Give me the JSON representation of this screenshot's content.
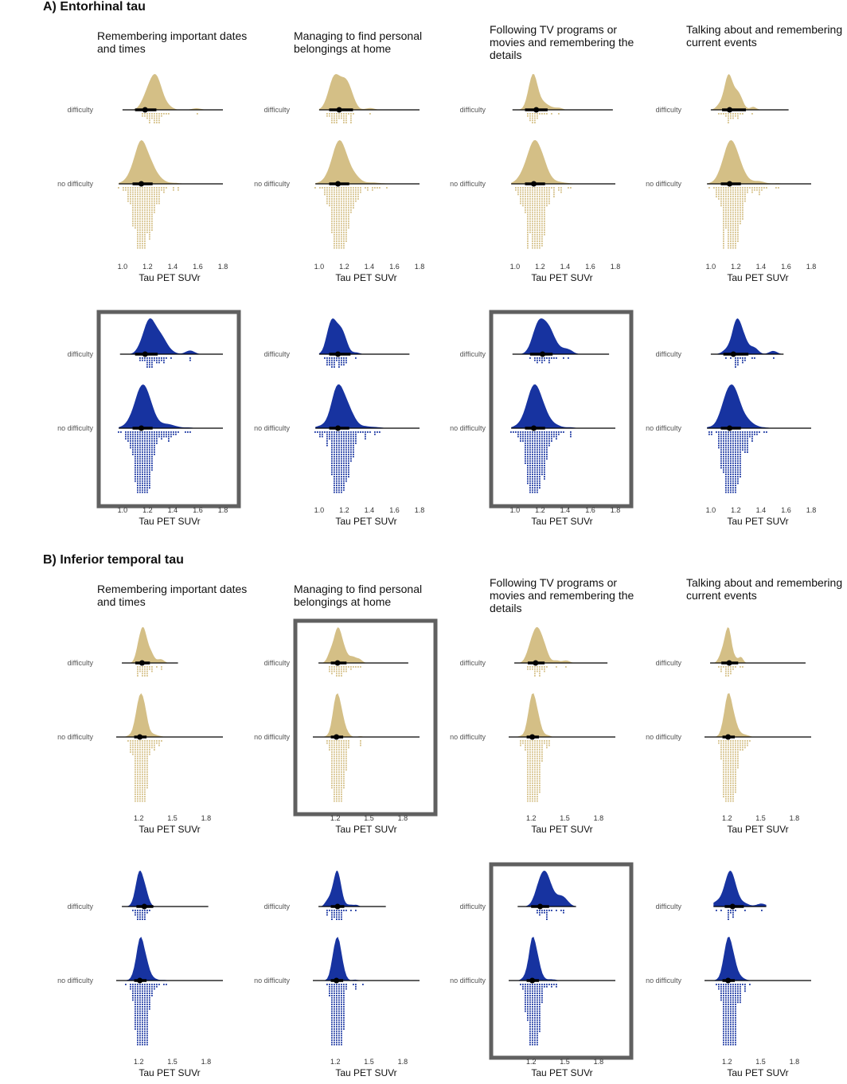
{
  "sections": [
    {
      "label": "A) Entorhinal tau",
      "columns": [
        {
          "title": "Remembering important dates and times"
        },
        {
          "title": "Managing to find personal belongings at home"
        },
        {
          "title": "Following TV programs or movies and remembering the details"
        },
        {
          "title": "Talking about and remembering current events"
        }
      ]
    },
    {
      "label": "B) Inferior temporal tau",
      "columns": [
        {
          "title": "Remembering important dates and times"
        },
        {
          "title": "Managing to find personal belongings at home"
        },
        {
          "title": "Following TV programs or movies and remembering the details"
        },
        {
          "title": "Talking about and remembering current events"
        }
      ]
    }
  ],
  "colors": {
    "tan": "#d4bf86",
    "blue": "#1733a0",
    "frame": "#606060",
    "summary": "#000000"
  },
  "chart_data": [
    {
      "id": "entorhinal",
      "type": "raincloud",
      "xlabel": "Tau PET SUVr",
      "xlim": [
        0.95,
        1.8
      ],
      "xticks": [
        1.0,
        1.2,
        1.4,
        1.6,
        1.8
      ],
      "categories": [
        "difficulty",
        "no difficulty"
      ],
      "rows": [
        {
          "series_color": "tan",
          "panels": [
            {
              "highlighted": false,
              "difficulty": {
                "range": [
                  1.0,
                  1.8
                ],
                "median": 1.18,
                "iqr": [
                  1.1,
                  1.27
                ],
                "peak": 1.2,
                "spread": 0.1,
                "n": 40
              },
              "no_difficulty": {
                "range": [
                  0.97,
                  1.8
                ],
                "median": 1.15,
                "iqr": [
                  1.08,
                  1.24
                ],
                "peak": 1.13,
                "spread": 0.1,
                "n": 320
              }
            },
            {
              "highlighted": false,
              "difficulty": {
                "range": [
                  1.0,
                  1.8
                ],
                "median": 1.16,
                "iqr": [
                  1.08,
                  1.27
                ],
                "peak": 1.13,
                "spread": 0.1,
                "n": 45
              },
              "no_difficulty": {
                "range": [
                  0.97,
                  1.8
                ],
                "median": 1.15,
                "iqr": [
                  1.08,
                  1.24
                ],
                "peak": 1.13,
                "spread": 0.1,
                "n": 320
              }
            },
            {
              "highlighted": false,
              "difficulty": {
                "range": [
                  0.98,
                  1.78
                ],
                "median": 1.17,
                "iqr": [
                  1.08,
                  1.26
                ],
                "peak": 1.12,
                "spread": 0.08,
                "n": 28
              },
              "no_difficulty": {
                "range": [
                  0.97,
                  1.8
                ],
                "median": 1.15,
                "iqr": [
                  1.08,
                  1.24
                ],
                "peak": 1.13,
                "spread": 0.1,
                "n": 320
              }
            },
            {
              "highlighted": false,
              "difficulty": {
                "range": [
                  1.0,
                  1.62
                ],
                "median": 1.15,
                "iqr": [
                  1.09,
                  1.28
                ],
                "peak": 1.12,
                "spread": 0.07,
                "n": 26
              },
              "no_difficulty": {
                "range": [
                  0.97,
                  1.8
                ],
                "median": 1.15,
                "iqr": [
                  1.08,
                  1.24
                ],
                "peak": 1.13,
                "spread": 0.1,
                "n": 320
              }
            }
          ]
        },
        {
          "series_color": "blue",
          "panels": [
            {
              "highlighted": true,
              "difficulty": {
                "range": [
                  0.98,
                  1.8
                ],
                "median": 1.18,
                "iqr": [
                  1.1,
                  1.28
                ],
                "peak": 1.2,
                "spread": 0.1,
                "n": 40
              },
              "no_difficulty": {
                "range": [
                  0.97,
                  1.8
                ],
                "median": 1.15,
                "iqr": [
                  1.08,
                  1.24
                ],
                "peak": 1.13,
                "spread": 0.1,
                "n": 320
              }
            },
            {
              "highlighted": false,
              "difficulty": {
                "range": [
                  1.0,
                  1.72
                ],
                "median": 1.15,
                "iqr": [
                  1.08,
                  1.25
                ],
                "peak": 1.1,
                "spread": 0.08,
                "n": 45
              },
              "no_difficulty": {
                "range": [
                  0.97,
                  1.8
                ],
                "median": 1.15,
                "iqr": [
                  1.08,
                  1.24
                ],
                "peak": 1.13,
                "spread": 0.1,
                "n": 320
              }
            },
            {
              "highlighted": true,
              "difficulty": {
                "range": [
                  0.98,
                  1.75
                ],
                "median": 1.22,
                "iqr": [
                  1.12,
                  1.3
                ],
                "peak": 1.2,
                "spread": 0.1,
                "n": 22
              },
              "no_difficulty": {
                "range": [
                  0.97,
                  1.8
                ],
                "median": 1.15,
                "iqr": [
                  1.08,
                  1.24
                ],
                "peak": 1.13,
                "spread": 0.1,
                "n": 320
              }
            },
            {
              "highlighted": false,
              "difficulty": {
                "range": [
                  1.0,
                  1.58
                ],
                "median": 1.18,
                "iqr": [
                  1.1,
                  1.3
                ],
                "peak": 1.2,
                "spread": 0.09,
                "n": 20
              },
              "no_difficulty": {
                "range": [
                  0.97,
                  1.8
                ],
                "median": 1.15,
                "iqr": [
                  1.08,
                  1.24
                ],
                "peak": 1.13,
                "spread": 0.1,
                "n": 320
              }
            }
          ]
        }
      ]
    },
    {
      "id": "inferior_temporal",
      "type": "raincloud",
      "xlabel": "Tau PET SUVr",
      "xlim": [
        1.0,
        1.95
      ],
      "xticks": [
        1.2,
        1.5,
        1.8
      ],
      "categories": [
        "difficulty",
        "no difficulty"
      ],
      "rows": [
        {
          "series_color": "tan",
          "panels": [
            {
              "highlighted": false,
              "difficulty": {
                "range": [
                  1.05,
                  1.55
                ],
                "median": 1.23,
                "iqr": [
                  1.17,
                  1.3
                ],
                "peak": 1.22,
                "spread": 0.07,
                "n": 40
              },
              "no_difficulty": {
                "range": [
                  1.0,
                  1.95
                ],
                "median": 1.21,
                "iqr": [
                  1.16,
                  1.27
                ],
                "peak": 1.2,
                "spread": 0.06,
                "n": 320
              }
            },
            {
              "highlighted": true,
              "difficulty": {
                "range": [
                  1.05,
                  1.85
                ],
                "median": 1.22,
                "iqr": [
                  1.16,
                  1.3
                ],
                "peak": 1.2,
                "spread": 0.07,
                "n": 45
              },
              "no_difficulty": {
                "range": [
                  1.0,
                  1.95
                ],
                "median": 1.21,
                "iqr": [
                  1.16,
                  1.27
                ],
                "peak": 1.2,
                "spread": 0.06,
                "n": 320
              }
            },
            {
              "highlighted": false,
              "difficulty": {
                "range": [
                  1.05,
                  1.88
                ],
                "median": 1.24,
                "iqr": [
                  1.17,
                  1.32
                ],
                "peak": 1.22,
                "spread": 0.09,
                "n": 28
              },
              "no_difficulty": {
                "range": [
                  1.0,
                  1.95
                ],
                "median": 1.21,
                "iqr": [
                  1.16,
                  1.27
                ],
                "peak": 1.2,
                "spread": 0.06,
                "n": 320
              }
            },
            {
              "highlighted": false,
              "difficulty": {
                "range": [
                  1.05,
                  1.9
                ],
                "median": 1.22,
                "iqr": [
                  1.15,
                  1.3
                ],
                "peak": 1.2,
                "spread": 0.05,
                "n": 26
              },
              "no_difficulty": {
                "range": [
                  1.0,
                  1.95
                ],
                "median": 1.21,
                "iqr": [
                  1.16,
                  1.27
                ],
                "peak": 1.2,
                "spread": 0.06,
                "n": 320
              }
            }
          ]
        },
        {
          "series_color": "blue",
          "panels": [
            {
              "highlighted": false,
              "difficulty": {
                "range": [
                  1.05,
                  1.82
                ],
                "median": 1.25,
                "iqr": [
                  1.18,
                  1.33
                ],
                "peak": 1.2,
                "spread": 0.07,
                "n": 40
              },
              "no_difficulty": {
                "range": [
                  1.0,
                  1.95
                ],
                "median": 1.21,
                "iqr": [
                  1.16,
                  1.27
                ],
                "peak": 1.2,
                "spread": 0.06,
                "n": 320
              }
            },
            {
              "highlighted": false,
              "difficulty": {
                "range": [
                  1.05,
                  1.65
                ],
                "median": 1.22,
                "iqr": [
                  1.16,
                  1.28
                ],
                "peak": 1.2,
                "spread": 0.06,
                "n": 45
              },
              "no_difficulty": {
                "range": [
                  1.0,
                  1.95
                ],
                "median": 1.21,
                "iqr": [
                  1.16,
                  1.27
                ],
                "peak": 1.2,
                "spread": 0.06,
                "n": 320
              }
            },
            {
              "highlighted": true,
              "difficulty": {
                "range": [
                  1.08,
                  1.6
                ],
                "median": 1.28,
                "iqr": [
                  1.2,
                  1.36
                ],
                "peak": 1.28,
                "spread": 0.12,
                "n": 20
              },
              "no_difficulty": {
                "range": [
                  1.0,
                  1.95
                ],
                "median": 1.21,
                "iqr": [
                  1.16,
                  1.27
                ],
                "peak": 1.2,
                "spread": 0.06,
                "n": 320
              }
            },
            {
              "highlighted": false,
              "difficulty": {
                "range": [
                  1.08,
                  1.55
                ],
                "median": 1.25,
                "iqr": [
                  1.18,
                  1.35
                ],
                "peak": 1.22,
                "spread": 0.12,
                "n": 18
              },
              "no_difficulty": {
                "range": [
                  1.0,
                  1.95
                ],
                "median": 1.21,
                "iqr": [
                  1.16,
                  1.27
                ],
                "peak": 1.2,
                "spread": 0.06,
                "n": 320
              }
            }
          ]
        }
      ]
    }
  ]
}
